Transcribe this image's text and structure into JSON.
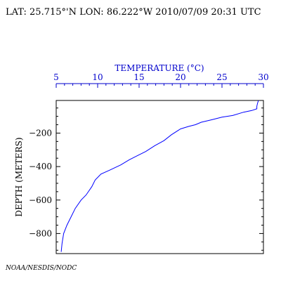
{
  "header": {
    "location_line": "LAT: 25.715°'N LON: 86.222°W 2010/07/09 20:31 UTC"
  },
  "footer": {
    "credit": "NOAA/NESDIS/NODC"
  },
  "colors": {
    "profile_line": "#0000ff",
    "temperature_axis": "#0000cc",
    "depth_axis": "#000000"
  },
  "chart_data": {
    "type": "line",
    "title": "",
    "xlabel": "TEMPERATURE (°C)",
    "ylabel": "DEPTH (METERS)",
    "xlim": [
      5,
      30
    ],
    "ylim": [
      -920,
      -5
    ],
    "x_axis_position": "top",
    "x_ticks": [
      5,
      10,
      15,
      20,
      25,
      30
    ],
    "x_tick_labels": [
      "5",
      "10",
      "15",
      "20",
      "25",
      "30"
    ],
    "y_ticks": [
      -200,
      -400,
      -600,
      -800
    ],
    "y_tick_labels": [
      "−200",
      "−400",
      "−600",
      "−800"
    ],
    "grid": false,
    "series": [
      {
        "x": [
          29.4,
          29.3,
          29.2,
          29.2,
          28.6,
          27.6,
          26.3,
          25.0,
          23.8,
          22.5,
          21.8,
          21.0,
          20.0,
          18.9,
          18.0,
          16.9,
          15.8,
          14.8,
          13.8,
          12.8,
          11.5,
          10.4,
          9.7,
          9.3,
          8.6,
          8.0,
          7.3,
          6.8,
          6.3,
          5.9,
          5.7,
          5.6
        ],
        "y": [
          -5,
          -20,
          -40,
          -55,
          -65,
          -75,
          -95,
          -105,
          -120,
          -135,
          -150,
          -160,
          -175,
          -210,
          -245,
          -275,
          -310,
          -335,
          -360,
          -390,
          -420,
          -445,
          -480,
          -520,
          -570,
          -600,
          -650,
          -700,
          -750,
          -800,
          -860,
          -910
        ]
      }
    ]
  }
}
